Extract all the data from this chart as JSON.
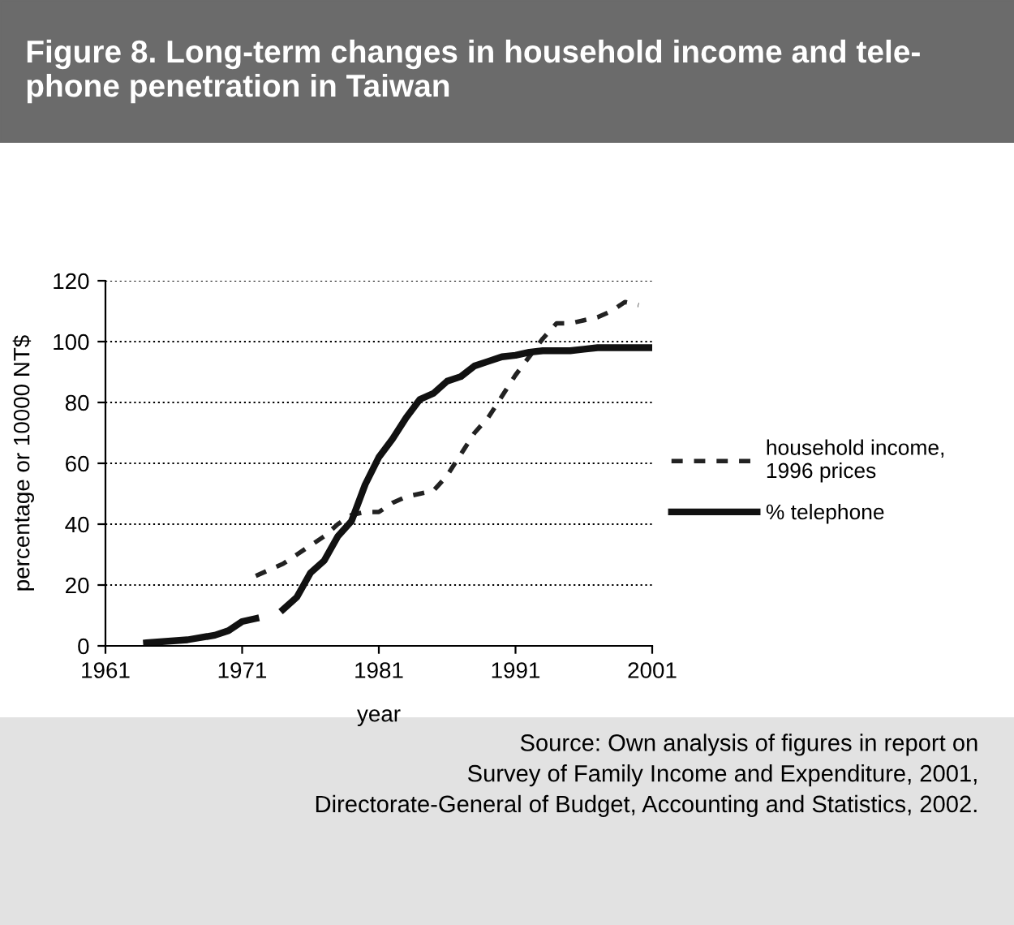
{
  "chart_data": {
    "type": "line",
    "title": "Figure 8. Long-term changes in household income and tele-\nphone penetration in Taiwan",
    "xlabel": "year",
    "ylabel": "percentage or 10000 NT$",
    "xlim": [
      1961,
      2001
    ],
    "xticks": [
      1961,
      1971,
      1981,
      1991,
      2001
    ],
    "ylim": [
      0,
      120
    ],
    "yticks": [
      0,
      20,
      40,
      60,
      80,
      100,
      120
    ],
    "grid": "y",
    "legend": "right",
    "series": [
      {
        "name": "household income,\n1996 prices",
        "color": "#222222",
        "line_style": "dashed",
        "x": [
          1972,
          1973,
          1974,
          1975,
          1976,
          1977,
          1978,
          1979,
          1980,
          1981,
          1982,
          1983,
          1984,
          1985,
          1986,
          1987,
          1988,
          1989,
          1990,
          1991,
          1992,
          1993,
          1994,
          1995,
          1996,
          1997,
          1998,
          1999,
          2000
        ],
        "values": [
          23,
          25,
          27,
          30,
          33,
          36,
          40,
          43,
          44,
          44,
          47,
          49,
          50,
          51,
          56,
          63,
          70,
          75,
          82,
          89,
          95,
          101,
          106,
          106,
          107,
          108,
          110,
          113,
          112
        ]
      },
      {
        "name": "% telephone",
        "color": "#111111",
        "line_style": "solid",
        "x": [
          1964,
          1967,
          1969,
          1970,
          1971,
          1972,
          1973,
          1974,
          1975,
          1976,
          1977,
          1978,
          1979,
          1980,
          1981,
          1982,
          1983,
          1984,
          1985,
          1986,
          1987,
          1988,
          1989,
          1990,
          1991,
          1992,
          1993,
          1994,
          1995,
          1996,
          1997,
          1998,
          1999,
          2000,
          2001
        ],
        "values": [
          1,
          2,
          3.5,
          5,
          8,
          9,
          null,
          12,
          16,
          24,
          28,
          36,
          41,
          53,
          62,
          68,
          75,
          81,
          83,
          87,
          88.5,
          92,
          93.5,
          95,
          95.5,
          96.5,
          97,
          97,
          97,
          97.5,
          98,
          98,
          98,
          98,
          98
        ]
      }
    ],
    "annotations": [
      "Source: Own analysis of figures in report on\nSurvey of Family Income and Expenditure, 2001,\nDirectorate-General of Budget, Accounting and Statistics, 2002."
    ]
  }
}
